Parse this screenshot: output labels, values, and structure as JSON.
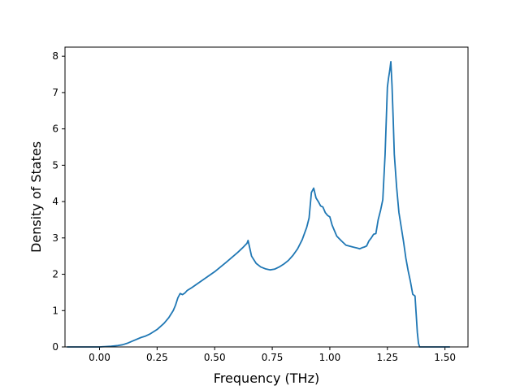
{
  "chart_data": {
    "type": "line",
    "title": "",
    "xlabel": "Frequency (THz)",
    "ylabel": "Density of States",
    "xlim": [
      -0.15,
      1.6
    ],
    "ylim": [
      0,
      8.25
    ],
    "grid": false,
    "legend": "none",
    "x_ticks": [
      0.0,
      0.25,
      0.5,
      0.75,
      1.0,
      1.25,
      1.5
    ],
    "x_tick_labels": [
      "0.00",
      "0.25",
      "0.50",
      "0.75",
      "1.00",
      "1.25",
      "1.50"
    ],
    "y_ticks": [
      0,
      1,
      2,
      3,
      4,
      5,
      6,
      7,
      8
    ],
    "y_tick_labels": [
      "0",
      "1",
      "2",
      "3",
      "4",
      "5",
      "6",
      "7",
      "8"
    ],
    "series": [
      {
        "color": "#1f77b4",
        "x": [
          -0.14,
          -0.05,
          0.0,
          0.05,
          0.08,
          0.1,
          0.12,
          0.15,
          0.18,
          0.2,
          0.22,
          0.25,
          0.28,
          0.3,
          0.32,
          0.33,
          0.34,
          0.35,
          0.36,
          0.37,
          0.38,
          0.4,
          0.45,
          0.5,
          0.55,
          0.6,
          0.62,
          0.64,
          0.645,
          0.66,
          0.68,
          0.7,
          0.72,
          0.74,
          0.76,
          0.78,
          0.8,
          0.82,
          0.84,
          0.86,
          0.88,
          0.9,
          0.91,
          0.92,
          0.93,
          0.94,
          0.945,
          0.95,
          0.96,
          0.97,
          0.98,
          0.99,
          1.0,
          1.01,
          1.02,
          1.03,
          1.05,
          1.07,
          1.1,
          1.12,
          1.13,
          1.14,
          1.15,
          1.16,
          1.17,
          1.18,
          1.19,
          1.2,
          1.21,
          1.22,
          1.23,
          1.24,
          1.25,
          1.255,
          1.26,
          1.265,
          1.27,
          1.275,
          1.28,
          1.29,
          1.3,
          1.31,
          1.32,
          1.33,
          1.34,
          1.35,
          1.36,
          1.37,
          1.375,
          1.38,
          1.385,
          1.39,
          1.42,
          1.46,
          1.51,
          1.52
        ],
        "y": [
          0.0,
          0.0,
          0.0,
          0.02,
          0.04,
          0.06,
          0.1,
          0.18,
          0.26,
          0.3,
          0.36,
          0.48,
          0.65,
          0.8,
          1.0,
          1.15,
          1.35,
          1.47,
          1.44,
          1.48,
          1.55,
          1.63,
          1.85,
          2.07,
          2.33,
          2.6,
          2.72,
          2.85,
          2.93,
          2.5,
          2.3,
          2.2,
          2.15,
          2.12,
          2.14,
          2.2,
          2.28,
          2.38,
          2.52,
          2.7,
          2.95,
          3.3,
          3.55,
          4.25,
          4.37,
          4.1,
          4.05,
          4.0,
          3.88,
          3.85,
          3.7,
          3.62,
          3.58,
          3.35,
          3.2,
          3.05,
          2.92,
          2.8,
          2.75,
          2.72,
          2.7,
          2.73,
          2.75,
          2.78,
          2.92,
          3.0,
          3.1,
          3.12,
          3.5,
          3.75,
          4.05,
          5.3,
          7.15,
          7.4,
          7.6,
          7.85,
          7.2,
          6.3,
          5.3,
          4.4,
          3.7,
          3.3,
          2.9,
          2.45,
          2.1,
          1.8,
          1.45,
          1.4,
          0.9,
          0.4,
          0.1,
          0.0,
          0.0,
          0.0,
          0.0,
          0.0
        ]
      }
    ]
  }
}
